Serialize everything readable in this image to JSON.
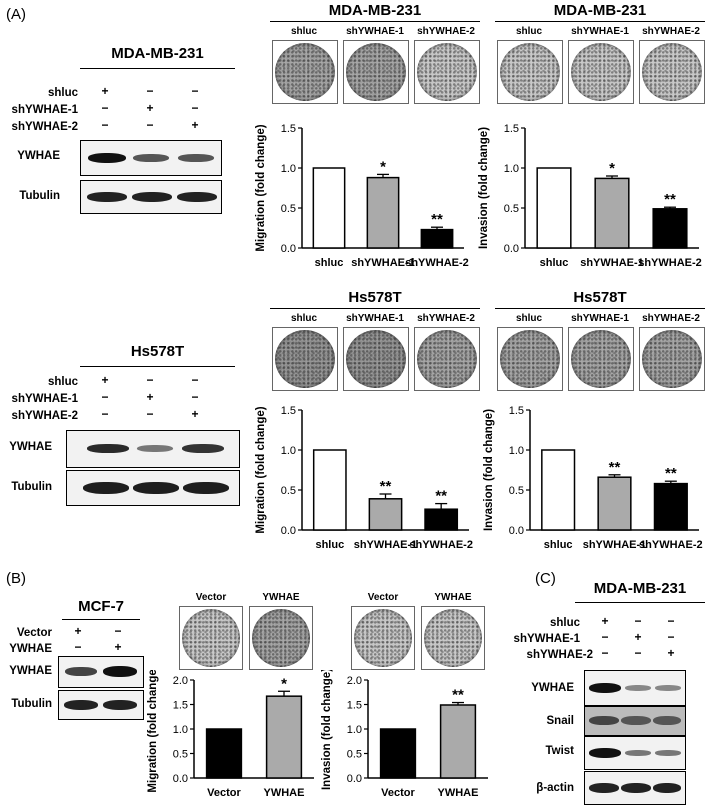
{
  "panels": {
    "A": "(A)",
    "B": "(B)",
    "C": "(C)"
  },
  "labels": {
    "shluc": "shluc",
    "sh1": "shYWHAE-1",
    "sh2": "shYWHAE-2",
    "ywhae": "YWHAE",
    "tubulin": "Tubulin",
    "vector": "Vector",
    "snail": "Snail",
    "twist": "Twist",
    "actin": "β-actin",
    "plus": "+",
    "minus": "−"
  },
  "cells": {
    "mda": "MDA-MB-231",
    "hs": "Hs578T",
    "mcf": "MCF-7"
  },
  "chart_data": [
    {
      "type": "bar",
      "id": "mda-migration",
      "categories": [
        "shluc",
        "shYWHAE-1",
        "shYWHAE-2"
      ],
      "values": [
        1.0,
        0.88,
        0.23
      ],
      "errors": [
        0,
        0.04,
        0.03
      ],
      "significance": [
        "",
        "*",
        "**"
      ],
      "fill": [
        "#ffffff",
        "#aaaaaa",
        "#000000"
      ],
      "ylabel": "Migration (fold change)",
      "ylim": [
        0,
        1.5
      ],
      "yticks": [
        "0.0",
        "0.5",
        "1.0",
        "1.5"
      ]
    },
    {
      "type": "bar",
      "id": "mda-invasion",
      "categories": [
        "shluc",
        "shYWHAE-1",
        "shYWHAE-2"
      ],
      "values": [
        1.0,
        0.87,
        0.49
      ],
      "errors": [
        0,
        0.03,
        0.02
      ],
      "significance": [
        "",
        "*",
        "**"
      ],
      "fill": [
        "#ffffff",
        "#aaaaaa",
        "#000000"
      ],
      "ylabel": "Invasion (fold change)",
      "ylim": [
        0,
        1.5
      ],
      "yticks": [
        "0.0",
        "0.5",
        "1.0",
        "1.5"
      ]
    },
    {
      "type": "bar",
      "id": "hs-migration",
      "categories": [
        "shluc",
        "shYWHAE-1",
        "shYWHAE-2"
      ],
      "values": [
        1.0,
        0.39,
        0.26
      ],
      "errors": [
        0,
        0.06,
        0.07
      ],
      "significance": [
        "",
        "**",
        "**"
      ],
      "fill": [
        "#ffffff",
        "#aaaaaa",
        "#000000"
      ],
      "ylabel": "Migration (fold change)",
      "ylim": [
        0,
        1.5
      ],
      "yticks": [
        "0.0",
        "0.5",
        "1.0",
        "1.5"
      ]
    },
    {
      "type": "bar",
      "id": "hs-invasion",
      "categories": [
        "shluc",
        "shYWHAE-1",
        "shYWHAE-2"
      ],
      "values": [
        1.0,
        0.66,
        0.58
      ],
      "errors": [
        0,
        0.03,
        0.03
      ],
      "significance": [
        "",
        "**",
        "**"
      ],
      "fill": [
        "#ffffff",
        "#aaaaaa",
        "#000000"
      ],
      "ylabel": "Invasion (fold change)",
      "ylim": [
        0,
        1.5
      ],
      "yticks": [
        "0.0",
        "0.5",
        "1.0",
        "1.5"
      ]
    },
    {
      "type": "bar",
      "id": "mcf-migration",
      "categories": [
        "Vector",
        "YWHAE"
      ],
      "values": [
        1.0,
        1.67
      ],
      "errors": [
        0,
        0.1
      ],
      "significance": [
        "",
        "*"
      ],
      "fill": [
        "#000000",
        "#aaaaaa"
      ],
      "ylabel": "Migration (fold change)",
      "ylim": [
        0,
        2.0
      ],
      "yticks": [
        "0.0",
        "0.5",
        "1.0",
        "1.5",
        "2.0"
      ]
    },
    {
      "type": "bar",
      "id": "mcf-invasion",
      "categories": [
        "Vector",
        "YWHAE"
      ],
      "values": [
        1.0,
        1.49
      ],
      "errors": [
        0,
        0.05
      ],
      "significance": [
        "",
        "**"
      ],
      "fill": [
        "#000000",
        "#aaaaaa"
      ],
      "ylabel": "Invasion (fold change)",
      "ylim": [
        0,
        2.0
      ],
      "yticks": [
        "0.0",
        "0.5",
        "1.0",
        "1.5",
        "2.0"
      ]
    }
  ]
}
